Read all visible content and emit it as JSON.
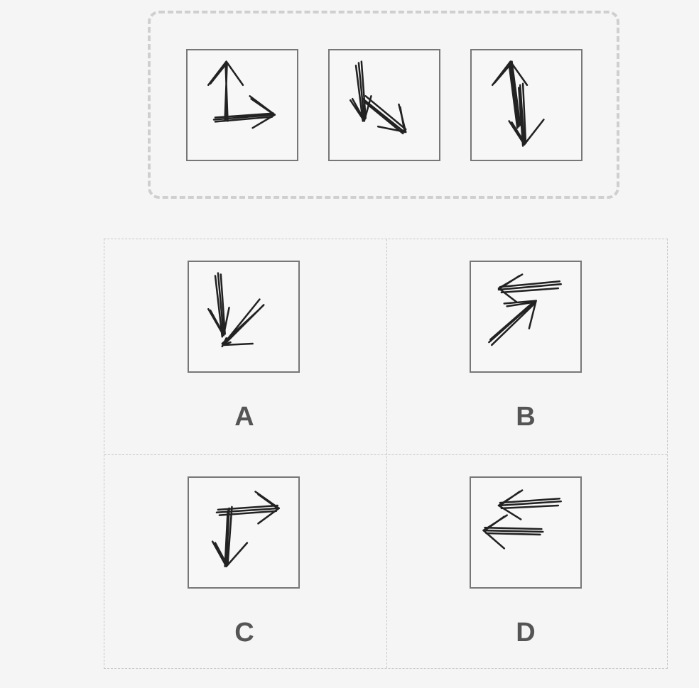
{
  "question": {
    "tiles": [
      {
        "icon": "up-and-right-arrows-icon"
      },
      {
        "icon": "down-and-down-right-arrows-icon"
      },
      {
        "icon": "up-and-down-arrows-icon"
      }
    ]
  },
  "options": [
    {
      "label": "A",
      "icon": "down-and-down-left-arrows-icon"
    },
    {
      "label": "B",
      "icon": "left-and-up-right-arrows-icon"
    },
    {
      "label": "C",
      "icon": "right-and-down-arrows-icon"
    },
    {
      "label": "D",
      "icon": "double-left-arrows-icon"
    }
  ]
}
